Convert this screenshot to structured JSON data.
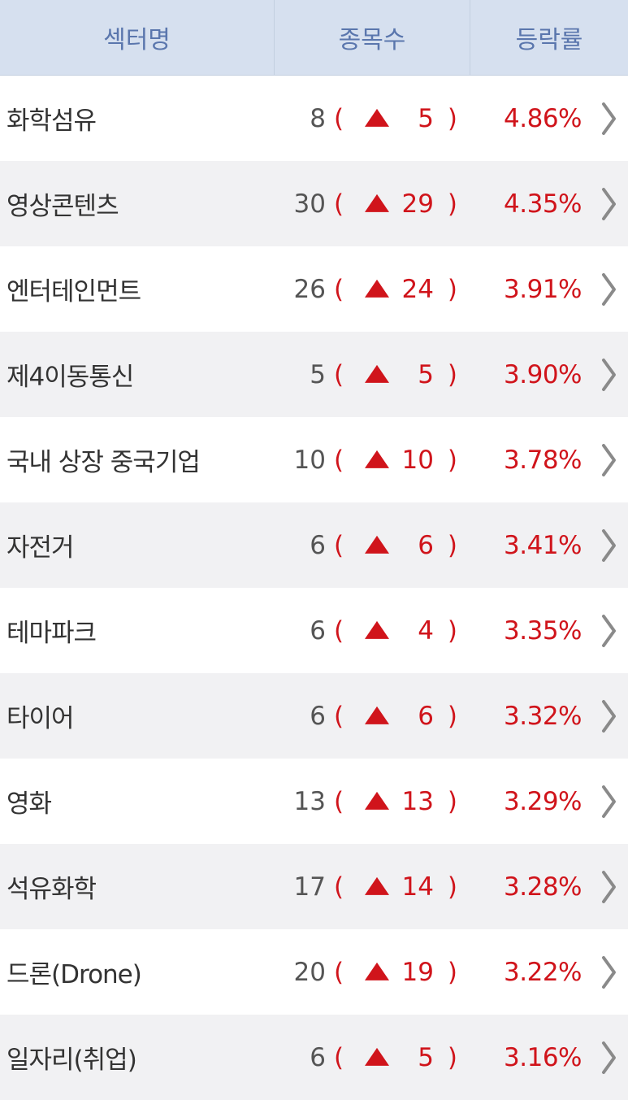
{
  "header": {
    "sector_label": "섹터명",
    "count_label": "종목수",
    "rate_label": "등락률"
  },
  "colors": {
    "header_bg": "#d6e0ef",
    "header_text": "#5a76ad",
    "up_red": "#d0141b",
    "row_alt_bg": "#f1f1f3"
  },
  "icons": {
    "up": "up-triangle-icon",
    "detail": "chevron-right-icon"
  },
  "rows": [
    {
      "name": "화학섬유",
      "total": "8",
      "up": "5",
      "rate": "4.86%"
    },
    {
      "name": "영상콘텐츠",
      "total": "30",
      "up": "29",
      "rate": "4.35%"
    },
    {
      "name": "엔터테인먼트",
      "total": "26",
      "up": "24",
      "rate": "3.91%"
    },
    {
      "name": "제4이동통신",
      "total": "5",
      "up": "5",
      "rate": "3.90%"
    },
    {
      "name": "국내 상장 중국기업",
      "total": "10",
      "up": "10",
      "rate": "3.78%"
    },
    {
      "name": "자전거",
      "total": "6",
      "up": "6",
      "rate": "3.41%"
    },
    {
      "name": "테마파크",
      "total": "6",
      "up": "4",
      "rate": "3.35%"
    },
    {
      "name": "타이어",
      "total": "6",
      "up": "6",
      "rate": "3.32%"
    },
    {
      "name": "영화",
      "total": "13",
      "up": "13",
      "rate": "3.29%"
    },
    {
      "name": "석유화학",
      "total": "17",
      "up": "14",
      "rate": "3.28%"
    },
    {
      "name": "드론(Drone)",
      "total": "20",
      "up": "19",
      "rate": "3.22%"
    },
    {
      "name": "일자리(취업)",
      "total": "6",
      "up": "5",
      "rate": "3.16%"
    }
  ]
}
